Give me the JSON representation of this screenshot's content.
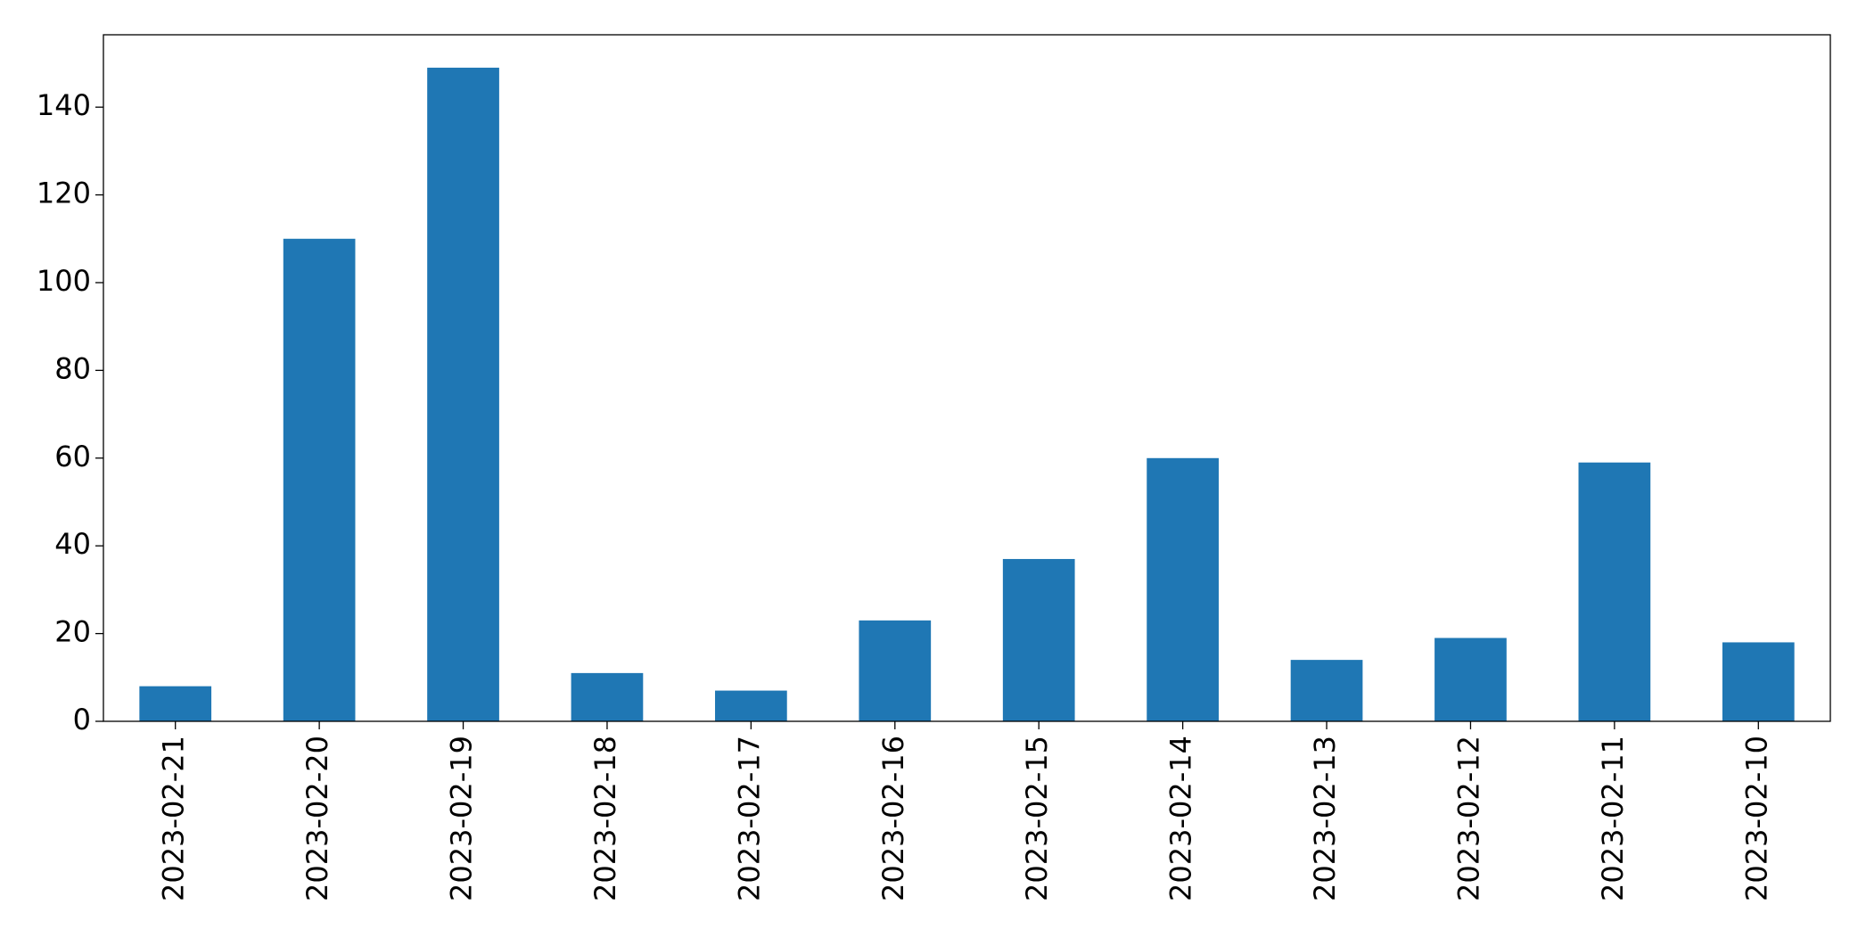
{
  "chart_data": {
    "type": "bar",
    "categories": [
      "2023-02-21",
      "2023-02-20",
      "2023-02-19",
      "2023-02-18",
      "2023-02-17",
      "2023-02-16",
      "2023-02-15",
      "2023-02-14",
      "2023-02-13",
      "2023-02-12",
      "2023-02-11",
      "2023-02-10"
    ],
    "values": [
      8,
      110,
      149,
      11,
      7,
      23,
      37,
      60,
      14,
      19,
      59,
      18
    ],
    "color": "#1f77b4",
    "ylim": [
      0,
      156.5
    ],
    "yticks": [
      0,
      20,
      40,
      60,
      80,
      100,
      120,
      140
    ],
    "grid": false
  }
}
